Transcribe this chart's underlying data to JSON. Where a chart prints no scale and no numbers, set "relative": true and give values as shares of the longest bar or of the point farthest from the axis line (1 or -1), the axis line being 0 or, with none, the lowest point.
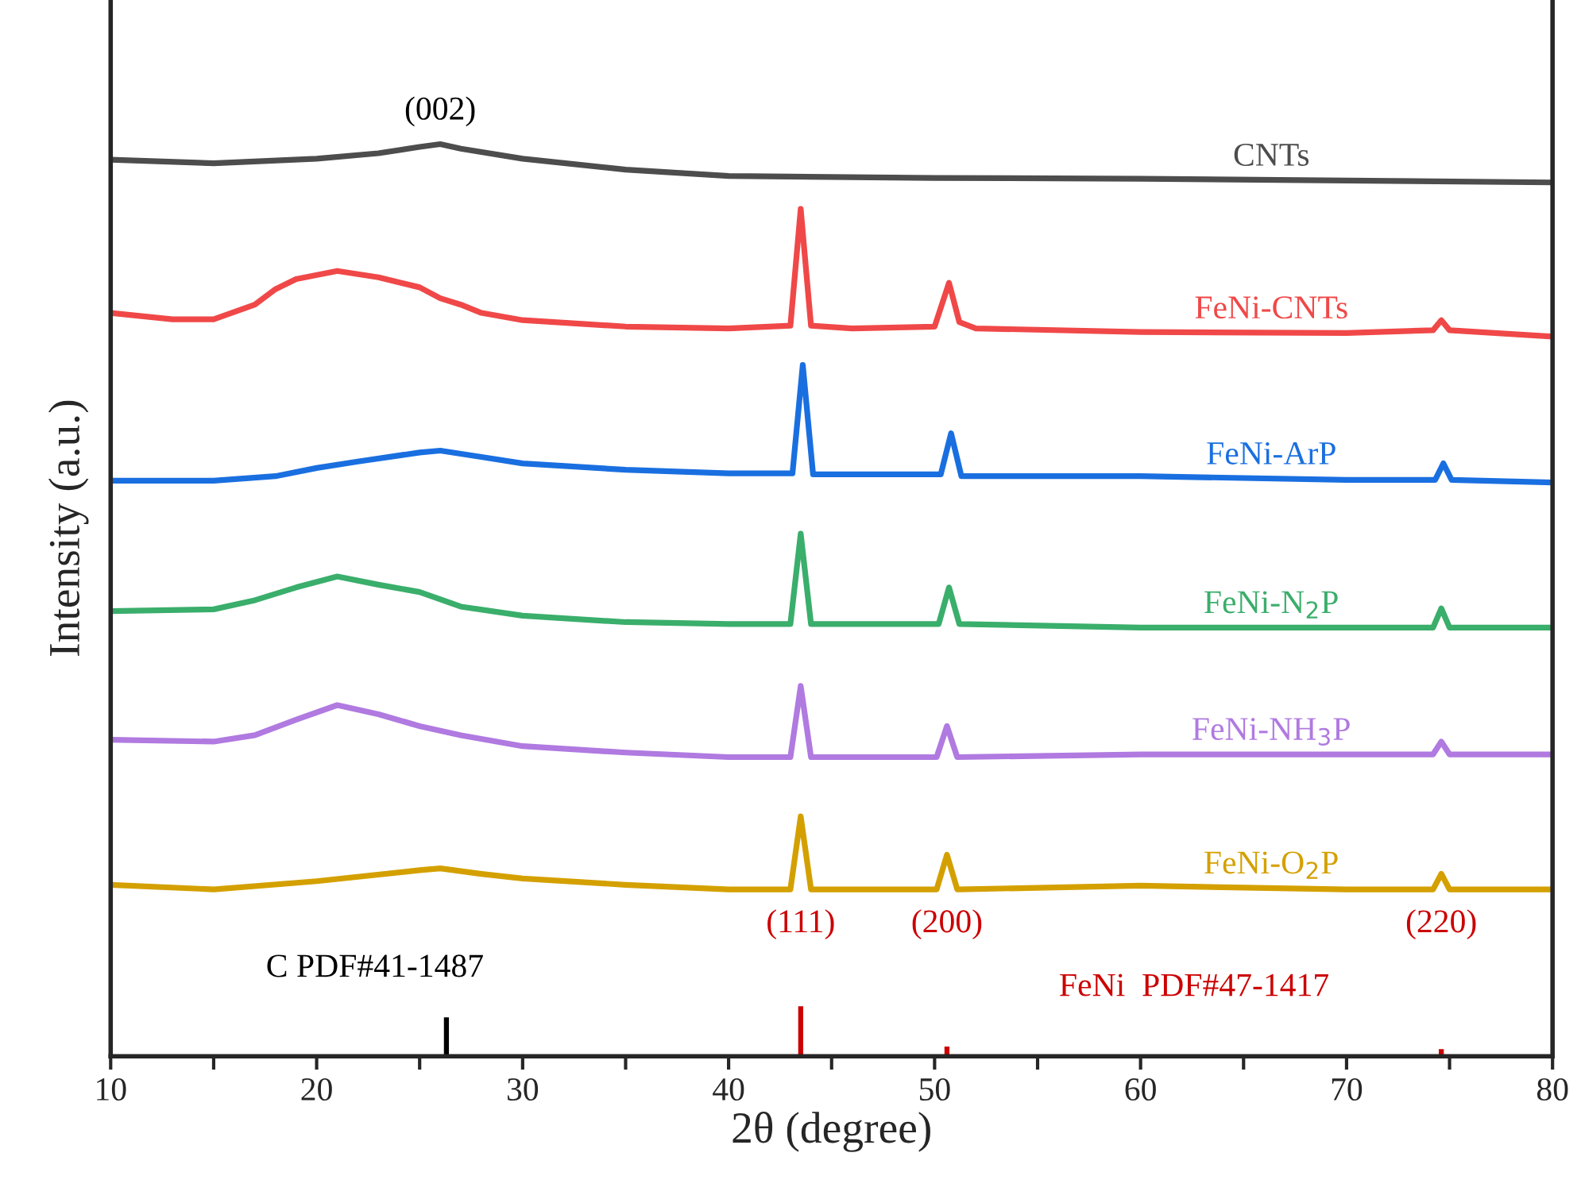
{
  "chart_data": {
    "type": "line",
    "relative": true,
    "xlabel": "2θ (degree)",
    "ylabel": "Intensity (a.u.)",
    "xlim": [
      10,
      80
    ],
    "xticks": [
      10,
      {
        "value": 15,
        "label": null
      },
      20,
      {
        "value": 25,
        "label": null
      },
      30,
      {
        "value": 35,
        "label": null
      },
      40,
      {
        "value": 45,
        "label": null
      },
      50,
      {
        "value": 55,
        "label": null
      },
      60,
      {
        "value": 65,
        "label": null
      },
      70,
      {
        "value": 75,
        "label": null
      },
      80
    ],
    "grid": false,
    "legend": false,
    "marker": "none",
    "line_style": "solid",
    "series": [
      {
        "name": "CNTs",
        "color": "#4d4d4d",
        "x": [
          10,
          15,
          20,
          23,
          25,
          26,
          27,
          30,
          35,
          40,
          50,
          60,
          70,
          80
        ],
        "values": [
          0.983,
          0.979,
          0.984,
          0.99,
          0.997,
          1.0,
          0.995,
          0.984,
          0.972,
          0.965,
          0.963,
          0.962,
          0.96,
          0.958
        ]
      },
      {
        "name": "FeNi-CNTs",
        "color": "#f04848",
        "x": [
          10,
          13,
          15,
          17,
          18,
          19,
          21,
          23,
          25,
          26,
          27,
          28,
          30,
          35,
          40,
          43,
          43.5,
          44,
          46,
          50,
          50.7,
          51.2,
          52,
          60,
          70,
          74.2,
          74.6,
          75,
          80
        ],
        "values": [
          0.815,
          0.808,
          0.808,
          0.824,
          0.841,
          0.852,
          0.861,
          0.854,
          0.843,
          0.831,
          0.824,
          0.815,
          0.807,
          0.8,
          0.798,
          0.801,
          0.929,
          0.801,
          0.798,
          0.8,
          0.848,
          0.805,
          0.798,
          0.794,
          0.793,
          0.796,
          0.807,
          0.796,
          0.789
        ]
      },
      {
        "name": "FeNi-ArP",
        "color": "#1a6fe0",
        "x": [
          10,
          15,
          18,
          20,
          22,
          25,
          26,
          28,
          30,
          35,
          40,
          43.1,
          43.6,
          44.1,
          50.3,
          50.8,
          51.3,
          60,
          70,
          74.3,
          74.7,
          75.1,
          80
        ],
        "values": [
          0.631,
          0.631,
          0.636,
          0.645,
          0.652,
          0.662,
          0.664,
          0.657,
          0.65,
          0.643,
          0.639,
          0.639,
          0.758,
          0.638,
          0.638,
          0.683,
          0.636,
          0.636,
          0.632,
          0.632,
          0.65,
          0.632,
          0.629
        ]
      },
      {
        "name": "FeNi-N$_{2}$P",
        "color": "#3aae6b",
        "x": [
          10,
          15,
          17,
          19,
          21,
          23,
          25,
          27,
          30,
          35,
          40,
          43,
          43.5,
          44,
          50.2,
          50.7,
          51.2,
          60,
          70,
          74.2,
          74.6,
          75,
          80
        ],
        "values": [
          0.488,
          0.49,
          0.5,
          0.514,
          0.526,
          0.517,
          0.509,
          0.493,
          0.483,
          0.476,
          0.474,
          0.474,
          0.573,
          0.474,
          0.474,
          0.514,
          0.474,
          0.47,
          0.47,
          0.47,
          0.491,
          0.47,
          0.47
        ]
      },
      {
        "name": "FeNi-NH$_{3}$P",
        "color": "#b07ae0",
        "x": [
          10,
          15,
          17,
          19,
          21,
          23,
          25,
          27,
          30,
          35,
          40,
          43,
          43.5,
          44,
          50.1,
          50.6,
          51.1,
          60,
          70,
          74.2,
          74.6,
          75,
          80
        ],
        "values": [
          0.347,
          0.345,
          0.352,
          0.369,
          0.385,
          0.375,
          0.362,
          0.352,
          0.34,
          0.333,
          0.328,
          0.328,
          0.406,
          0.328,
          0.328,
          0.362,
          0.328,
          0.331,
          0.331,
          0.331,
          0.345,
          0.331,
          0.331
        ]
      },
      {
        "name": "FeNi-O$_{2}$P",
        "color": "#d4a000",
        "x": [
          10,
          15,
          20,
          25,
          26,
          28,
          30,
          35,
          40,
          43,
          43.5,
          44,
          50.1,
          50.6,
          51.1,
          60,
          70,
          74.2,
          74.6,
          75,
          80
        ],
        "values": [
          0.188,
          0.183,
          0.192,
          0.204,
          0.206,
          0.2,
          0.195,
          0.188,
          0.183,
          0.183,
          0.263,
          0.183,
          0.183,
          0.221,
          0.183,
          0.187,
          0.183,
          0.183,
          0.2,
          0.183,
          0.183
        ]
      },
      {
        "type": "bar",
        "name": "C PDF#41-1487",
        "color": "#000000",
        "x": [
          26.3
        ],
        "values": [
          0.044
        ]
      },
      {
        "type": "bar",
        "name": "FeNi  PDF#47-1417",
        "color": "#cc0000",
        "x": [
          43.5,
          50.6,
          74.6
        ],
        "values": [
          0.056,
          0.012,
          0.009
        ]
      }
    ],
    "annotations": [
      {
        "text": "(002)",
        "x": 26,
        "y": 1.0
      },
      {
        "text": "(111)",
        "x": 43.5,
        "y": 0.263
      },
      {
        "text": "(200)",
        "x": 50.6,
        "y": 0.221
      },
      {
        "text": "(220)",
        "x": 74.6,
        "y": 0.2
      }
    ]
  }
}
